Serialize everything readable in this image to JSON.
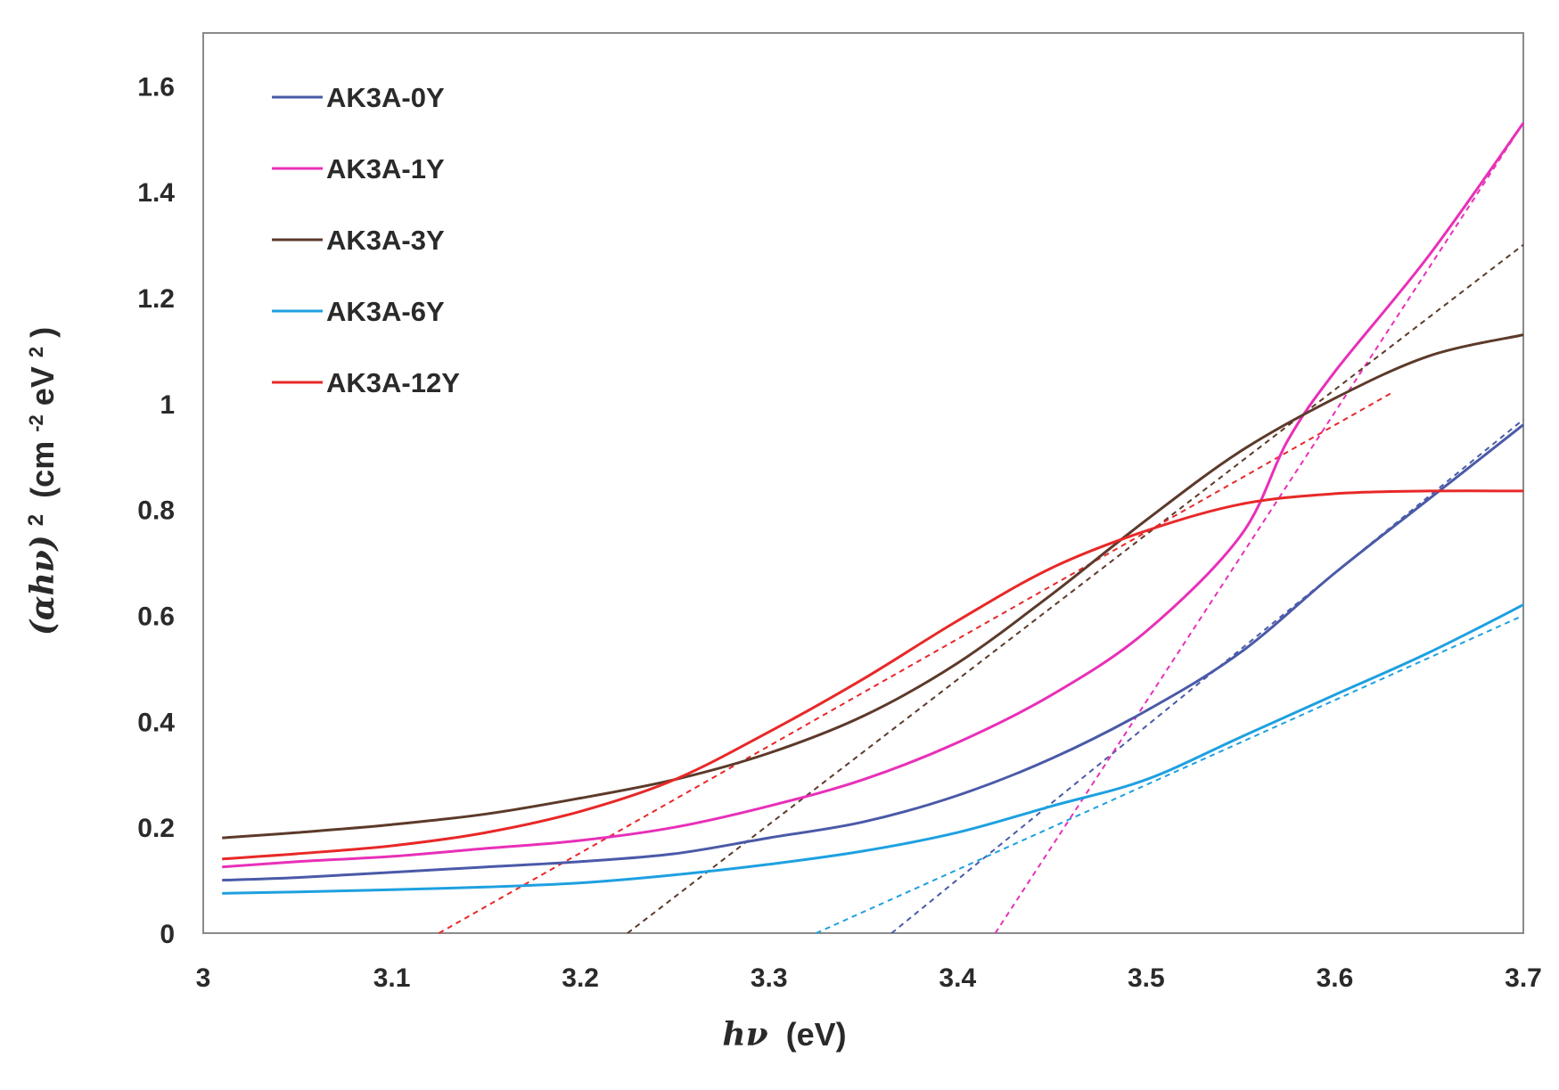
{
  "chart_data": {
    "type": "line",
    "title": "",
    "xlabel": {
      "symbol": "hν",
      "unit": "(eV)"
    },
    "ylabel": {
      "symbol": "(αhν)",
      "exponent": "2",
      "unit_open": "(cm",
      "unit_exp": "-2",
      "unit_mid": "eV",
      "unit_exp2": "2",
      "unit_close": ")"
    },
    "xlim": [
      3,
      3.7
    ],
    "ylim": [
      0,
      1.7
    ],
    "xticks": [
      3,
      3.1,
      3.2,
      3.3,
      3.4,
      3.5,
      3.6,
      3.7
    ],
    "xtick_labels": [
      "3",
      "3.1",
      "3.2",
      "3.3",
      "3.4",
      "3.5",
      "3.6",
      "3.7"
    ],
    "yticks": [
      0,
      0.2,
      0.4,
      0.6,
      0.8,
      1,
      1.2,
      1.4,
      1.6
    ],
    "ytick_labels": [
      "0",
      "0.2",
      "0.4",
      "0.6",
      "0.8",
      "1",
      "1.2",
      "1.4",
      "1.6"
    ],
    "grid": false,
    "legend_position": "top-left",
    "series": [
      {
        "name": "AK3A-0Y",
        "color": "#4a5aa8",
        "x": [
          3.01,
          3.05,
          3.1,
          3.15,
          3.2,
          3.25,
          3.3,
          3.35,
          3.4,
          3.45,
          3.5,
          3.55,
          3.6,
          3.65,
          3.7
        ],
        "y": [
          0.1,
          0.105,
          0.115,
          0.125,
          0.135,
          0.15,
          0.18,
          0.21,
          0.26,
          0.33,
          0.42,
          0.53,
          0.68,
          0.82,
          0.96
        ],
        "fit": {
          "x": [
            3.365,
            3.7
          ],
          "y": [
            0,
            0.97
          ]
        }
      },
      {
        "name": "AK3A-1Y",
        "color": "#e830b8",
        "x": [
          3.01,
          3.05,
          3.1,
          3.15,
          3.2,
          3.25,
          3.3,
          3.35,
          3.4,
          3.45,
          3.5,
          3.55,
          3.575,
          3.6,
          3.65,
          3.7
        ],
        "y": [
          0.125,
          0.135,
          0.145,
          0.16,
          0.175,
          0.2,
          0.24,
          0.29,
          0.36,
          0.45,
          0.57,
          0.75,
          0.93,
          1.06,
          1.28,
          1.53
        ],
        "fit": {
          "x": [
            3.42,
            3.7
          ],
          "y": [
            0,
            1.53
          ]
        }
      },
      {
        "name": "AK3A-3Y",
        "color": "#5c3a2a",
        "x": [
          3.01,
          3.05,
          3.1,
          3.15,
          3.2,
          3.25,
          3.3,
          3.35,
          3.4,
          3.45,
          3.5,
          3.55,
          3.6,
          3.65,
          3.7
        ],
        "y": [
          0.18,
          0.19,
          0.205,
          0.225,
          0.255,
          0.29,
          0.34,
          0.41,
          0.51,
          0.64,
          0.78,
          0.91,
          1.01,
          1.09,
          1.13
        ],
        "fit": {
          "x": [
            3.225,
            3.7
          ],
          "y": [
            0,
            1.3
          ]
        }
      },
      {
        "name": "AK3A-6Y",
        "color": "#1ea0e0",
        "x": [
          3.01,
          3.05,
          3.1,
          3.15,
          3.2,
          3.25,
          3.3,
          3.35,
          3.4,
          3.45,
          3.5,
          3.55,
          3.6,
          3.65,
          3.7
        ],
        "y": [
          0.075,
          0.078,
          0.082,
          0.087,
          0.095,
          0.11,
          0.13,
          0.155,
          0.19,
          0.24,
          0.29,
          0.37,
          0.45,
          0.53,
          0.62
        ],
        "fit": {
          "x": [
            3.325,
            3.7
          ],
          "y": [
            0,
            0.6
          ]
        }
      },
      {
        "name": "AK3A-12Y",
        "color": "#e82828",
        "x": [
          3.01,
          3.05,
          3.1,
          3.15,
          3.2,
          3.25,
          3.3,
          3.35,
          3.4,
          3.45,
          3.5,
          3.55,
          3.6,
          3.65,
          3.7
        ],
        "y": [
          0.14,
          0.15,
          0.165,
          0.19,
          0.23,
          0.29,
          0.38,
          0.48,
          0.59,
          0.69,
          0.76,
          0.81,
          0.83,
          0.835,
          0.835
        ],
        "fit": {
          "x": [
            3.125,
            3.63
          ],
          "y": [
            0,
            1.02
          ]
        }
      }
    ]
  }
}
